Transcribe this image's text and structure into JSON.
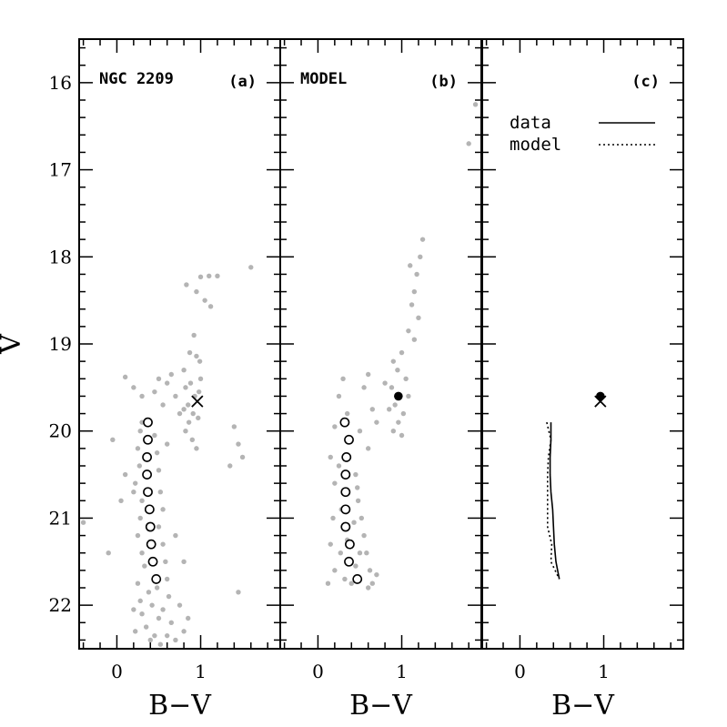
{
  "chart_data": {
    "type": "scatter",
    "ylabel": "V",
    "xlabel": "B−V",
    "ylim": [
      15.5,
      22.5
    ],
    "y_inverted": true,
    "xlim": [
      -0.45,
      1.95
    ],
    "y_ticks": [
      "16",
      "17",
      "18",
      "19",
      "20",
      "21",
      "22"
    ],
    "x_ticks": [
      "0",
      "1"
    ],
    "colors": {
      "points": "#b4b4b4",
      "marker": "#000000"
    },
    "panels": [
      {
        "id": "a",
        "title": "NGC 2209",
        "label": "(a)",
        "scatter": [
          [
            1.6,
            18.12
          ],
          [
            1.2,
            18.22
          ],
          [
            1.1,
            18.22
          ],
          [
            1.0,
            18.23
          ],
          [
            1.05,
            18.5
          ],
          [
            0.83,
            18.32
          ],
          [
            0.95,
            18.4
          ],
          [
            1.12,
            18.57
          ],
          [
            0.92,
            18.9
          ],
          [
            0.87,
            19.1
          ],
          [
            0.95,
            19.14
          ],
          [
            0.99,
            19.2
          ],
          [
            0.8,
            19.3
          ],
          [
            0.82,
            19.5
          ],
          [
            0.88,
            19.45
          ],
          [
            0.93,
            19.6
          ],
          [
            0.98,
            19.55
          ],
          [
            0.85,
            19.7
          ],
          [
            0.91,
            19.8
          ],
          [
            0.97,
            19.85
          ],
          [
            0.82,
            20.0
          ],
          [
            0.9,
            20.1
          ],
          [
            0.95,
            20.2
          ],
          [
            0.86,
            19.9
          ],
          [
            1.0,
            19.4
          ],
          [
            0.8,
            19.75
          ],
          [
            1.4,
            19.95
          ],
          [
            1.45,
            20.15
          ],
          [
            1.5,
            20.3
          ],
          [
            1.35,
            20.4
          ],
          [
            0.6,
            19.45
          ],
          [
            0.7,
            19.6
          ],
          [
            0.55,
            19.7
          ],
          [
            0.5,
            19.4
          ],
          [
            0.65,
            19.35
          ],
          [
            0.45,
            19.55
          ],
          [
            0.75,
            19.8
          ],
          [
            0.6,
            20.15
          ],
          [
            0.1,
            19.38
          ],
          [
            0.2,
            19.5
          ],
          [
            0.3,
            19.6
          ],
          [
            -0.05,
            20.1
          ],
          [
            0.1,
            20.5
          ],
          [
            0.05,
            20.8
          ],
          [
            -0.1,
            21.4
          ],
          [
            -0.4,
            21.05
          ],
          [
            0.2,
            20.7
          ],
          [
            0.7,
            21.2
          ],
          [
            0.8,
            21.5
          ],
          [
            1.45,
            21.85
          ],
          [
            0.3,
            19.9
          ],
          [
            0.28,
            20.0
          ],
          [
            0.25,
            20.2
          ],
          [
            0.27,
            20.4
          ],
          [
            0.22,
            20.6
          ],
          [
            0.3,
            20.8
          ],
          [
            0.45,
            20.05
          ],
          [
            0.48,
            20.25
          ],
          [
            0.5,
            20.45
          ],
          [
            0.52,
            20.7
          ],
          [
            0.55,
            20.9
          ],
          [
            0.5,
            21.1
          ],
          [
            0.28,
            21.0
          ],
          [
            0.25,
            21.2
          ],
          [
            0.3,
            21.4
          ],
          [
            0.33,
            21.55
          ],
          [
            0.55,
            21.3
          ],
          [
            0.58,
            21.5
          ],
          [
            0.6,
            21.7
          ],
          [
            0.62,
            21.9
          ],
          [
            0.25,
            21.75
          ],
          [
            0.28,
            21.95
          ],
          [
            0.3,
            22.1
          ],
          [
            0.35,
            22.25
          ],
          [
            0.4,
            22.4
          ],
          [
            0.45,
            22.35
          ],
          [
            0.5,
            22.15
          ],
          [
            0.55,
            22.05
          ],
          [
            0.65,
            22.2
          ],
          [
            0.7,
            22.4
          ],
          [
            0.75,
            22.0
          ],
          [
            0.8,
            22.3
          ],
          [
            0.2,
            22.05
          ],
          [
            0.22,
            22.3
          ],
          [
            0.85,
            22.15
          ],
          [
            0.38,
            21.85
          ],
          [
            0.42,
            22.0
          ],
          [
            0.48,
            21.8
          ],
          [
            0.52,
            22.45
          ],
          [
            0.6,
            22.35
          ]
        ],
        "circles": [
          [
            0.37,
            19.9
          ],
          [
            0.37,
            20.1
          ],
          [
            0.36,
            20.3
          ],
          [
            0.36,
            20.5
          ],
          [
            0.37,
            20.7
          ],
          [
            0.39,
            20.9
          ],
          [
            0.4,
            21.1
          ],
          [
            0.41,
            21.3
          ],
          [
            0.43,
            21.5
          ],
          [
            0.47,
            21.7
          ]
        ],
        "marker": {
          "shape": "x",
          "x": 0.96,
          "y": 19.66
        }
      },
      {
        "id": "b",
        "title": "MODEL",
        "label": "(b)",
        "scatter": [
          [
            1.88,
            16.25
          ],
          [
            1.8,
            16.7
          ],
          [
            1.25,
            17.8
          ],
          [
            1.22,
            18.0
          ],
          [
            1.18,
            18.2
          ],
          [
            1.1,
            18.1
          ],
          [
            1.15,
            18.4
          ],
          [
            1.12,
            18.55
          ],
          [
            1.2,
            18.7
          ],
          [
            1.08,
            18.85
          ],
          [
            1.15,
            18.95
          ],
          [
            1.0,
            19.1
          ],
          [
            0.9,
            19.2
          ],
          [
            0.95,
            19.3
          ],
          [
            1.05,
            19.4
          ],
          [
            0.88,
            19.5
          ],
          [
            0.92,
            19.7
          ],
          [
            1.02,
            19.8
          ],
          [
            0.96,
            19.9
          ],
          [
            0.9,
            20.0
          ],
          [
            1.0,
            20.05
          ],
          [
            0.85,
            19.75
          ],
          [
            1.08,
            19.6
          ],
          [
            0.8,
            19.45
          ],
          [
            0.6,
            19.35
          ],
          [
            0.55,
            19.5
          ],
          [
            0.65,
            19.75
          ],
          [
            0.7,
            19.9
          ],
          [
            0.5,
            20.0
          ],
          [
            0.6,
            20.2
          ],
          [
            0.3,
            19.4
          ],
          [
            0.25,
            19.6
          ],
          [
            0.35,
            19.8
          ],
          [
            0.2,
            19.95
          ],
          [
            0.15,
            20.3
          ],
          [
            0.2,
            20.6
          ],
          [
            0.18,
            21.0
          ],
          [
            0.15,
            21.3
          ],
          [
            0.2,
            21.6
          ],
          [
            0.12,
            21.75
          ],
          [
            0.25,
            20.4
          ],
          [
            0.45,
            20.5
          ],
          [
            0.48,
            20.8
          ],
          [
            0.52,
            21.0
          ],
          [
            0.55,
            21.2
          ],
          [
            0.58,
            21.4
          ],
          [
            0.62,
            21.6
          ],
          [
            0.65,
            21.75
          ],
          [
            0.6,
            21.8
          ],
          [
            0.7,
            21.65
          ],
          [
            0.28,
            20.9
          ],
          [
            0.3,
            21.1
          ],
          [
            0.27,
            21.4
          ],
          [
            0.32,
            21.7
          ],
          [
            0.4,
            21.75
          ],
          [
            0.45,
            21.55
          ],
          [
            0.5,
            21.4
          ],
          [
            0.35,
            21.25
          ],
          [
            0.43,
            21.05
          ],
          [
            0.47,
            20.65
          ]
        ],
        "circles": [
          [
            0.32,
            19.9
          ],
          [
            0.37,
            20.1
          ],
          [
            0.34,
            20.3
          ],
          [
            0.33,
            20.5
          ],
          [
            0.33,
            20.7
          ],
          [
            0.33,
            20.9
          ],
          [
            0.33,
            21.1
          ],
          [
            0.38,
            21.3
          ],
          [
            0.37,
            21.5
          ],
          [
            0.47,
            21.7
          ]
        ],
        "marker": {
          "shape": "dot",
          "x": 0.96,
          "y": 19.6
        }
      },
      {
        "id": "c",
        "title": "",
        "label": "(c)",
        "legend": [
          {
            "label": "data",
            "style": "solid"
          },
          {
            "label": "model",
            "style": "dotted"
          }
        ],
        "data_line": [
          [
            0.37,
            19.9
          ],
          [
            0.37,
            20.1
          ],
          [
            0.36,
            20.3
          ],
          [
            0.36,
            20.5
          ],
          [
            0.37,
            20.7
          ],
          [
            0.39,
            20.9
          ],
          [
            0.4,
            21.1
          ],
          [
            0.41,
            21.3
          ],
          [
            0.43,
            21.5
          ],
          [
            0.47,
            21.7
          ]
        ],
        "model_line": [
          [
            0.32,
            19.9
          ],
          [
            0.37,
            20.1
          ],
          [
            0.34,
            20.3
          ],
          [
            0.33,
            20.5
          ],
          [
            0.33,
            20.7
          ],
          [
            0.33,
            20.9
          ],
          [
            0.33,
            21.1
          ],
          [
            0.38,
            21.3
          ],
          [
            0.37,
            21.5
          ],
          [
            0.47,
            21.7
          ]
        ],
        "markers": [
          {
            "shape": "x",
            "x": 0.96,
            "y": 19.66
          },
          {
            "shape": "dot",
            "x": 0.96,
            "y": 19.6
          }
        ]
      }
    ]
  }
}
